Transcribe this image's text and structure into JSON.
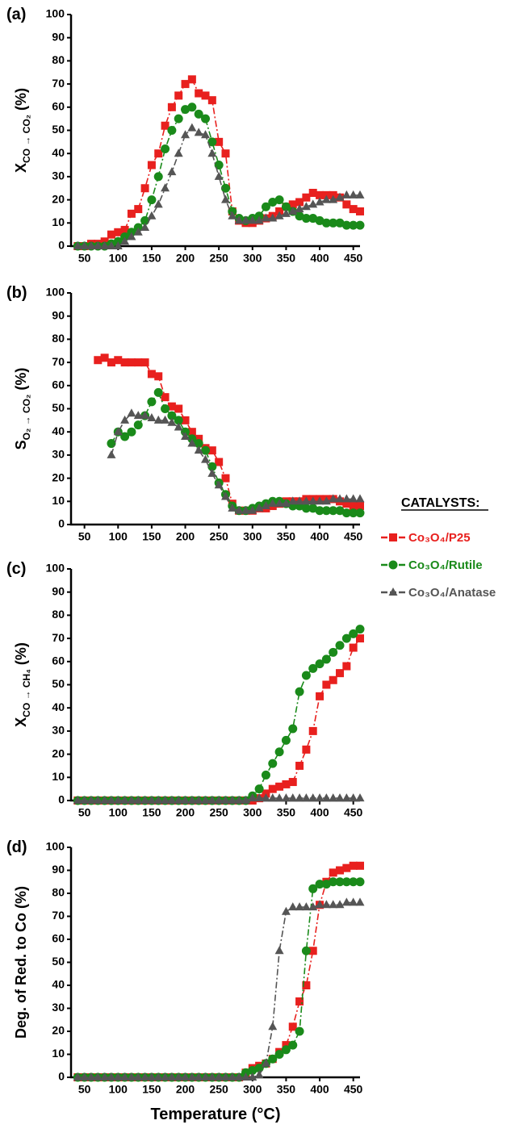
{
  "legend_title": "CATALYSTS:",
  "chart_data": [
    {
      "type": "line",
      "panel_label": "(a)",
      "ylabel": {
        "text": "X",
        "subscript": "CO → CO₂",
        "suffix": " (%)"
      },
      "x": [
        40,
        50,
        60,
        70,
        80,
        90,
        100,
        110,
        120,
        130,
        140,
        150,
        160,
        170,
        180,
        190,
        200,
        210,
        220,
        230,
        240,
        250,
        260,
        270,
        280,
        290,
        300,
        310,
        320,
        330,
        340,
        350,
        360,
        370,
        380,
        390,
        400,
        410,
        420,
        430,
        440,
        450,
        460
      ],
      "xlim": [
        30,
        460
      ],
      "xticks": [
        50,
        100,
        150,
        200,
        250,
        300,
        350,
        400,
        450
      ],
      "ylim": [
        0,
        100
      ],
      "yticks": [
        0,
        10,
        20,
        30,
        40,
        50,
        60,
        70,
        80,
        90,
        100
      ],
      "series": [
        {
          "name": "Co₃O₄/P25",
          "color": "#e8201e",
          "marker": "square",
          "values": [
            0,
            0,
            1,
            1,
            2,
            5,
            6,
            7,
            14,
            16,
            25,
            35,
            40,
            52,
            60,
            65,
            70,
            72,
            66,
            65,
            63,
            45,
            40,
            15,
            11,
            10,
            10,
            11,
            12,
            13,
            15,
            17,
            18,
            19,
            21,
            23,
            22,
            22,
            22,
            21,
            18,
            16,
            15
          ]
        },
        {
          "name": "Co₃O₄/Rutile",
          "color": "#1a8a1a",
          "marker": "circle",
          "values": [
            0,
            0,
            0,
            0,
            0,
            1,
            2,
            4,
            6,
            8,
            11,
            20,
            30,
            42,
            50,
            55,
            59,
            60,
            57,
            55,
            45,
            35,
            25,
            15,
            12,
            11,
            12,
            13,
            17,
            19,
            20,
            17,
            15,
            13,
            12,
            12,
            11,
            10,
            10,
            10,
            9,
            9,
            9
          ]
        },
        {
          "name": "Co₃O₄/Anatase",
          "color": "#555555",
          "marker": "triangle",
          "values": [
            0,
            0,
            0,
            0,
            0,
            0,
            0,
            2,
            4,
            6,
            8,
            13,
            18,
            25,
            32,
            40,
            48,
            51,
            49,
            48,
            40,
            30,
            20,
            13,
            11,
            11,
            11,
            11,
            12,
            12,
            13,
            14,
            15,
            16,
            17,
            18,
            19,
            20,
            20,
            21,
            22,
            22,
            22
          ]
        }
      ]
    },
    {
      "type": "line",
      "panel_label": "(b)",
      "ylabel": {
        "text": "S",
        "subscript": "O₂ → CO₂",
        "suffix": " (%)"
      },
      "x": [
        70,
        80,
        90,
        100,
        110,
        120,
        130,
        140,
        150,
        160,
        170,
        180,
        190,
        200,
        210,
        220,
        230,
        240,
        250,
        260,
        270,
        280,
        290,
        300,
        310,
        320,
        330,
        340,
        350,
        360,
        370,
        380,
        390,
        400,
        410,
        420,
        430,
        440,
        450,
        460
      ],
      "xlim": [
        30,
        460
      ],
      "xticks": [
        50,
        100,
        150,
        200,
        250,
        300,
        350,
        400,
        450
      ],
      "ylim": [
        0,
        100
      ],
      "yticks": [
        0,
        10,
        20,
        30,
        40,
        50,
        60,
        70,
        80,
        90,
        100
      ],
      "series": [
        {
          "name": "Co₃O₄/P25",
          "color": "#e8201e",
          "marker": "square",
          "values": [
            71,
            72,
            70,
            71,
            70,
            70,
            70,
            70,
            65,
            64,
            55,
            51,
            50,
            45,
            40,
            37,
            33,
            32,
            27,
            20,
            9,
            6,
            6,
            6,
            7,
            7,
            8,
            9,
            10,
            10,
            10,
            11,
            11,
            11,
            11,
            11,
            10,
            9,
            8,
            8
          ]
        },
        {
          "name": "Co₃O₄/Rutile",
          "color": "#1a8a1a",
          "marker": "circle",
          "values": [
            null,
            null,
            35,
            40,
            38,
            40,
            43,
            47,
            53,
            57,
            50,
            47,
            45,
            40,
            37,
            35,
            32,
            25,
            18,
            13,
            8,
            6,
            6,
            7,
            8,
            9,
            10,
            10,
            9,
            8,
            8,
            7,
            7,
            6,
            6,
            6,
            6,
            5,
            5,
            5
          ]
        },
        {
          "name": "Co₃O₄/Anatase",
          "color": "#555555",
          "marker": "triangle",
          "values": [
            null,
            null,
            30,
            40,
            45,
            48,
            47,
            47,
            46,
            45,
            45,
            44,
            42,
            38,
            35,
            32,
            28,
            22,
            17,
            12,
            7,
            6,
            6,
            6,
            7,
            8,
            9,
            9,
            9,
            10,
            10,
            10,
            10,
            10,
            10,
            11,
            11,
            11,
            11,
            11
          ]
        }
      ]
    },
    {
      "type": "line",
      "panel_label": "(c)",
      "ylabel": {
        "text": "X",
        "subscript": "CO → CH₄",
        "suffix": " (%)"
      },
      "x": [
        40,
        50,
        60,
        70,
        80,
        90,
        100,
        110,
        120,
        130,
        140,
        150,
        160,
        170,
        180,
        190,
        200,
        210,
        220,
        230,
        240,
        250,
        260,
        270,
        280,
        290,
        300,
        310,
        320,
        330,
        340,
        350,
        360,
        370,
        380,
        390,
        400,
        410,
        420,
        430,
        440,
        450,
        460
      ],
      "xlim": [
        30,
        460
      ],
      "xticks": [
        50,
        100,
        150,
        200,
        250,
        300,
        350,
        400,
        450
      ],
      "ylim": [
        0,
        100
      ],
      "yticks": [
        0,
        10,
        20,
        30,
        40,
        50,
        60,
        70,
        80,
        90,
        100
      ],
      "series": [
        {
          "name": "Co₃O₄/P25",
          "color": "#e8201e",
          "marker": "square",
          "values": [
            0,
            0,
            0,
            0,
            0,
            0,
            0,
            0,
            0,
            0,
            0,
            0,
            0,
            0,
            0,
            0,
            0,
            0,
            0,
            0,
            0,
            0,
            0,
            0,
            0,
            0,
            0,
            1,
            3,
            5,
            6,
            7,
            8,
            15,
            22,
            30,
            45,
            50,
            52,
            55,
            58,
            66,
            70
          ]
        },
        {
          "name": "Co₃O₄/Rutile",
          "color": "#1a8a1a",
          "marker": "circle",
          "values": [
            0,
            0,
            0,
            0,
            0,
            0,
            0,
            0,
            0,
            0,
            0,
            0,
            0,
            0,
            0,
            0,
            0,
            0,
            0,
            0,
            0,
            0,
            0,
            0,
            0,
            0,
            2,
            5,
            11,
            16,
            21,
            26,
            31,
            47,
            54,
            57,
            59,
            61,
            64,
            67,
            70,
            72,
            74
          ]
        },
        {
          "name": "Co₃O₄/Anatase",
          "color": "#555555",
          "marker": "triangle",
          "values": [
            0,
            0,
            0,
            0,
            0,
            0,
            0,
            0,
            0,
            0,
            0,
            0,
            0,
            0,
            0,
            0,
            0,
            0,
            0,
            0,
            0,
            0,
            0,
            0,
            0,
            0,
            1,
            1,
            1,
            1,
            1,
            1,
            1,
            1,
            1,
            1,
            1,
            1,
            1,
            1,
            1,
            1,
            1
          ]
        }
      ]
    },
    {
      "type": "line",
      "panel_label": "(d)",
      "ylabel": {
        "text": "Deg. of Red. to Co (%)"
      },
      "xlabel": "Temperature (°C)",
      "x": [
        40,
        50,
        60,
        70,
        80,
        90,
        100,
        110,
        120,
        130,
        140,
        150,
        160,
        170,
        180,
        190,
        200,
        210,
        220,
        230,
        240,
        250,
        260,
        270,
        280,
        290,
        300,
        310,
        320,
        330,
        340,
        350,
        360,
        370,
        380,
        390,
        400,
        410,
        420,
        430,
        440,
        450,
        460
      ],
      "xlim": [
        30,
        460
      ],
      "xticks": [
        50,
        100,
        150,
        200,
        250,
        300,
        350,
        400,
        450
      ],
      "ylim": [
        0,
        100
      ],
      "yticks": [
        0,
        10,
        20,
        30,
        40,
        50,
        60,
        70,
        80,
        90,
        100
      ],
      "series": [
        {
          "name": "Co₃O₄/P25",
          "color": "#e8201e",
          "marker": "square",
          "values": [
            0,
            0,
            0,
            0,
            0,
            0,
            0,
            0,
            0,
            0,
            0,
            0,
            0,
            0,
            0,
            0,
            0,
            0,
            0,
            0,
            0,
            0,
            0,
            0,
            0,
            2,
            4,
            5,
            6,
            8,
            11,
            14,
            22,
            33,
            40,
            55,
            75,
            85,
            89,
            90,
            91,
            92,
            92
          ]
        },
        {
          "name": "Co₃O₄/Rutile",
          "color": "#1a8a1a",
          "marker": "circle",
          "values": [
            0,
            0,
            0,
            0,
            0,
            0,
            0,
            0,
            0,
            0,
            0,
            0,
            0,
            0,
            0,
            0,
            0,
            0,
            0,
            0,
            0,
            0,
            0,
            0,
            0,
            2,
            3,
            4,
            6,
            8,
            10,
            12,
            14,
            20,
            55,
            82,
            84,
            84,
            85,
            85,
            85,
            85,
            85
          ]
        },
        {
          "name": "Co₃O₄/Anatase",
          "color": "#555555",
          "marker": "triangle",
          "values": [
            0,
            0,
            0,
            0,
            0,
            0,
            0,
            0,
            0,
            0,
            0,
            0,
            0,
            0,
            0,
            0,
            0,
            0,
            0,
            0,
            0,
            0,
            0,
            0,
            0,
            0,
            0,
            1,
            6,
            22,
            55,
            72,
            74,
            74,
            74,
            74,
            75,
            75,
            75,
            75,
            76,
            76,
            76
          ]
        }
      ]
    }
  ]
}
